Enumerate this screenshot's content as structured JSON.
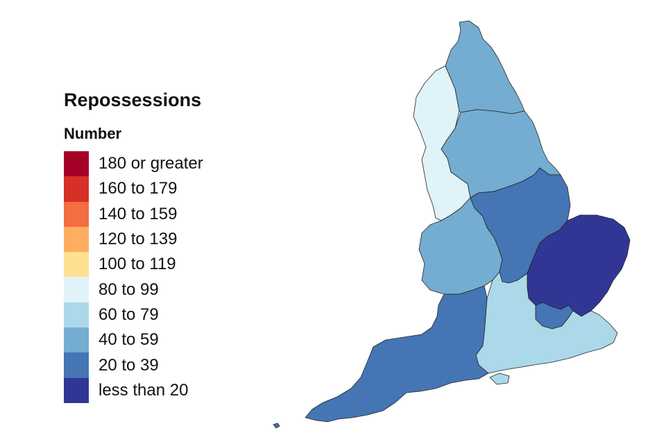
{
  "legend": {
    "title": "Repossessions",
    "subtitle": "Number",
    "items": [
      {
        "label": "180 or greater",
        "color": "#a50026"
      },
      {
        "label": "160 to 179",
        "color": "#d73027"
      },
      {
        "label": "140 to 159",
        "color": "#f46d43"
      },
      {
        "label": "120 to 139",
        "color": "#fdae61"
      },
      {
        "label": "100 to 119",
        "color": "#fee090"
      },
      {
        "label": "80 to 99",
        "color": "#e0f3f8"
      },
      {
        "label": "60 to 79",
        "color": "#abd9e9"
      },
      {
        "label": "40 to 59",
        "color": "#74add1"
      },
      {
        "label": "20 to 39",
        "color": "#4575b4"
      },
      {
        "label": "less than 20",
        "color": "#313695"
      }
    ]
  },
  "map": {
    "regions": [
      {
        "region": "north-east",
        "band": "40 to 59",
        "color": "#74add1"
      },
      {
        "region": "north-west",
        "band": "80 to 99",
        "color": "#e0f3f8"
      },
      {
        "region": "yorkshire-and-the-humber",
        "band": "40 to 59",
        "color": "#74add1"
      },
      {
        "region": "east-midlands",
        "band": "20 to 39",
        "color": "#4575b4"
      },
      {
        "region": "west-midlands",
        "band": "40 to 59",
        "color": "#74add1"
      },
      {
        "region": "east-of-england",
        "band": "less than 20",
        "color": "#313695"
      },
      {
        "region": "london",
        "band": "20 to 39",
        "color": "#4575b4"
      },
      {
        "region": "south-east",
        "band": "60 to 79",
        "color": "#abd9e9"
      },
      {
        "region": "south-west",
        "band": "20 to 39",
        "color": "#4575b4"
      }
    ]
  }
}
